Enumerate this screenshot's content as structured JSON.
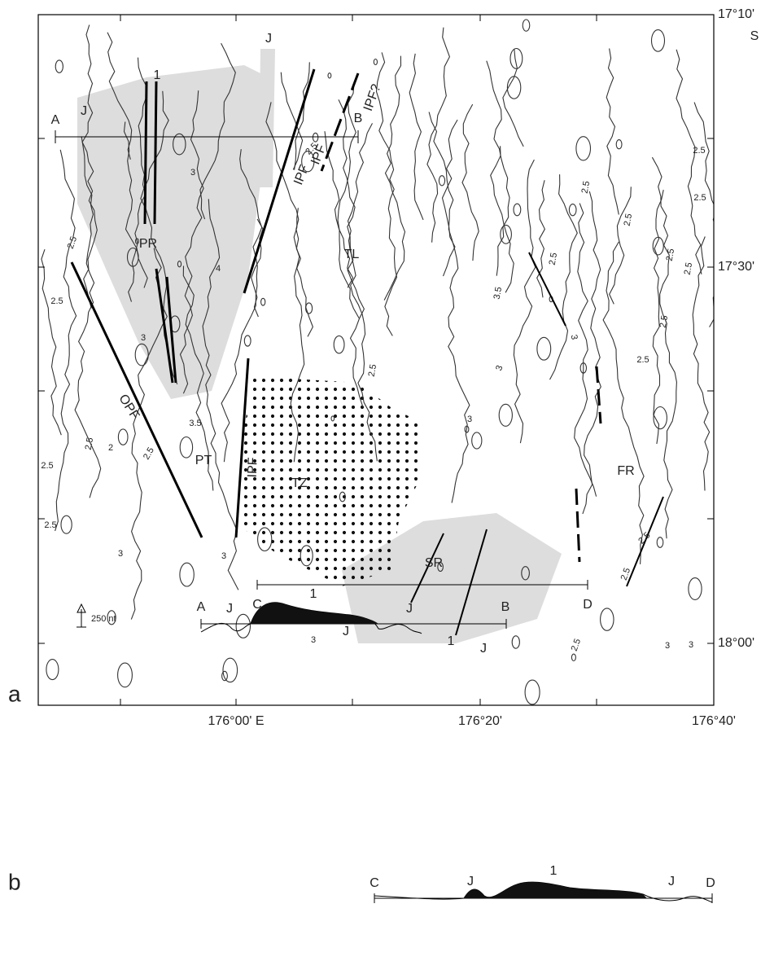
{
  "panel_labels": [
    "a",
    "b"
  ],
  "latitude_labels": [
    "17°10'",
    "17°30'",
    "18°00'"
  ],
  "hemisphere_label": "S",
  "longitude_labels": [
    "176°00' E",
    "176°20'",
    "176°40'"
  ],
  "map_labels": [
    "PR",
    "TL",
    "PT",
    "TZ",
    "SR",
    "FR",
    "IPF",
    "IPF",
    "IPF?",
    "IPF",
    "OPF",
    "J",
    "J",
    "J",
    "J",
    "1",
    "1"
  ],
  "profile_endpoints": [
    "A",
    "B",
    "C",
    "D"
  ],
  "contour_labels": [
    "2.5",
    "2.5",
    "2.5",
    "2.5",
    "2.5",
    "2.5",
    "2.5",
    "3",
    "4",
    "3",
    "3.5",
    "2",
    "3",
    "3",
    "2.5",
    "3.5",
    "3",
    "3",
    "2.5",
    "2.5",
    "2.5",
    "2.5",
    "2.5",
    "2.5",
    "2.5",
    "2.5",
    "3",
    "2.5",
    "2.5",
    "2.5",
    "3",
    "3",
    "3",
    "2.5"
  ],
  "profiles": {
    "scale_label": "250 nt",
    "ab": {
      "labels": [
        "A",
        "J",
        "1",
        "J",
        "B"
      ]
    },
    "cd": {
      "labels": [
        "C",
        "J",
        "1",
        "J",
        "D"
      ]
    }
  }
}
